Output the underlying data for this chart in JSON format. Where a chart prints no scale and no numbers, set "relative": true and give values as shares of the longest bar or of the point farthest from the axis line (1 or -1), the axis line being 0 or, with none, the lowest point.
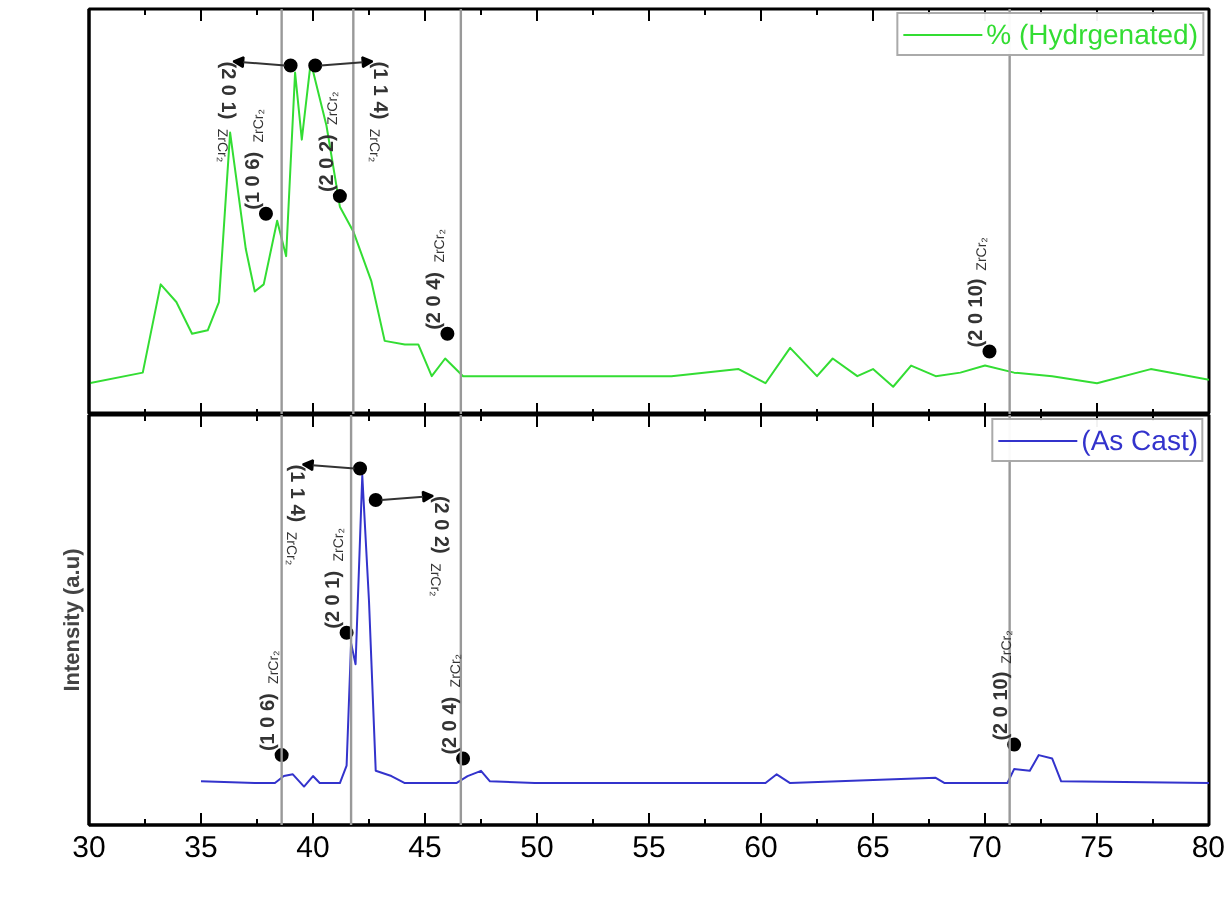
{
  "chart_data": [
    {
      "type": "line",
      "relative": true,
      "legend": "top right",
      "grid": false,
      "tick_labels": false,
      "xlim": [
        30,
        80
      ],
      "xticks": [
        30,
        {
          "value": 32.5,
          "label": null
        },
        35,
        {
          "value": 37.5,
          "label": null
        },
        40,
        {
          "value": 42.5,
          "label": null
        },
        45,
        {
          "value": 47.5,
          "label": null
        },
        50,
        {
          "value": 52.5,
          "label": null
        },
        55,
        {
          "value": 57.5,
          "label": null
        },
        60,
        {
          "value": 62.5,
          "label": null
        },
        65,
        {
          "value": 67.5,
          "label": null
        },
        70,
        {
          "value": 72.5,
          "label": null
        },
        75,
        {
          "value": 77.5,
          "label": null
        },
        80
      ],
      "x": [
        30,
        32.4,
        33.2,
        33.9,
        34.6,
        35.3,
        35.8,
        36.3,
        37.0,
        37.4,
        37.8,
        38.4,
        38.8,
        39.2,
        39.5,
        39.9,
        40.6,
        41.2,
        41.8,
        42.6,
        43.2,
        44.1,
        44.7,
        45.3,
        45.9,
        46.7,
        49.9,
        53.2,
        56.0,
        59.0,
        60.2,
        61.3,
        62.5,
        63.2,
        64.3,
        65.0,
        65.9,
        66.7,
        67.8,
        68.9,
        70.0,
        71.3,
        73.0,
        75.0,
        77.4,
        80.0
      ],
      "series": [
        {
          "name": "% (Hydrgenated)",
          "color": "#33dd33",
          "values": [
            0.09,
            0.12,
            0.37,
            0.32,
            0.23,
            0.24,
            0.32,
            0.8,
            0.47,
            0.35,
            0.37,
            0.55,
            0.45,
            0.97,
            0.78,
            1.0,
            0.82,
            0.59,
            0.52,
            0.38,
            0.21,
            0.2,
            0.2,
            0.11,
            0.16,
            0.11,
            0.11,
            0.11,
            0.11,
            0.13,
            0.09,
            0.19,
            0.11,
            0.16,
            0.11,
            0.13,
            0.08,
            0.14,
            0.11,
            0.12,
            0.14,
            0.12,
            0.11,
            0.09,
            0.13,
            0.1
          ]
        }
      ],
      "ref_lines": [
        {
          "axis": "x",
          "value": 38.6,
          "color": "#999999"
        },
        {
          "axis": "x",
          "value": 41.8,
          "color": "#999999"
        },
        {
          "axis": "x",
          "value": 46.6,
          "color": "#999999"
        },
        {
          "axis": "x",
          "value": 71.1,
          "color": "#999999"
        }
      ],
      "annotations": [
        {
          "text": "(1 0 6)$_{ZrCr₂}$",
          "x": 37.9,
          "y": 0.57
        },
        {
          "text": "(2 0 1)$_{ZrCr₂}$",
          "x": 39.0,
          "y": 0.99
        },
        {
          "text": "(1 1 4)$_{ZrCr₂}$",
          "x": 40.1,
          "y": 0.99
        },
        {
          "text": "(2 0 2)$_{ZrCr₂}$",
          "x": 41.2,
          "y": 0.62
        },
        {
          "text": "(2 0 4)$_{ZrCr₂}$",
          "x": 46.0,
          "y": 0.23
        },
        {
          "text": "(2 0 10)$_{ZrCr₂}$",
          "x": 70.2,
          "y": 0.18
        }
      ]
    },
    {
      "type": "line",
      "relative": true,
      "legend": "top right",
      "grid": false,
      "tick_labels": "x",
      "xlim": [
        30,
        80
      ],
      "ylabel": "Intensity (a.u)",
      "xticks": [
        30,
        {
          "value": 32.5,
          "label": null
        },
        35,
        {
          "value": 37.5,
          "label": null
        },
        40,
        {
          "value": 42.5,
          "label": null
        },
        45,
        {
          "value": 47.5,
          "label": null
        },
        50,
        {
          "value": 52.5,
          "label": null
        },
        55,
        {
          "value": 57.5,
          "label": null
        },
        60,
        {
          "value": 62.5,
          "label": null
        },
        65,
        {
          "value": 67.5,
          "label": null
        },
        70,
        {
          "value": 72.5,
          "label": null
        },
        75,
        {
          "value": 77.5,
          "label": null
        },
        80
      ],
      "x": [
        35,
        37.4,
        38.3,
        38.7,
        39.1,
        39.6,
        40.0,
        40.3,
        41.2,
        41.5,
        41.7,
        41.9,
        42.2,
        42.5,
        42.8,
        43.5,
        44.1,
        46.4,
        46.9,
        47.5,
        47.9,
        49.9,
        53.2,
        60.2,
        60.7,
        61.3,
        67.8,
        68.2,
        71.0,
        71.3,
        72.0,
        72.4,
        73.0,
        73.4,
        80.0
      ],
      "series": [
        {
          "name": "(As Cast)",
          "color": "#3333cc",
          "values": [
            0.125,
            0.12,
            0.12,
            0.14,
            0.145,
            0.11,
            0.14,
            0.12,
            0.12,
            0.17,
            0.52,
            0.46,
            1.0,
            0.64,
            0.155,
            0.14,
            0.12,
            0.12,
            0.14,
            0.155,
            0.125,
            0.12,
            0.12,
            0.12,
            0.145,
            0.12,
            0.135,
            0.12,
            0.12,
            0.16,
            0.155,
            0.2,
            0.19,
            0.125,
            0.12
          ]
        }
      ],
      "ref_lines": [
        {
          "axis": "x",
          "value": 38.6,
          "color": "#999999"
        },
        {
          "axis": "x",
          "value": 41.7,
          "color": "#999999"
        },
        {
          "axis": "x",
          "value": 46.6,
          "color": "#999999"
        },
        {
          "axis": "x",
          "value": 71.1,
          "color": "#999999"
        }
      ],
      "annotations": [
        {
          "text": "(1 0 6)$_{ZrCr₂}$",
          "x": 38.6,
          "y": 0.2
        },
        {
          "text": "(2 0 1)$_{ZrCr₂}$",
          "x": 41.5,
          "y": 0.55
        },
        {
          "text": "(1 1 4)$_{ZrCr₂}$",
          "x": 42.1,
          "y": 1.02
        },
        {
          "text": "(2 0 2)$_{ZrCr₂}$",
          "x": 42.8,
          "y": 0.93
        },
        {
          "text": "(2 0 4)$_{ZrCr₂}$",
          "x": 46.7,
          "y": 0.19
        },
        {
          "text": "(2 0 10)$_{ZrCr₂}$",
          "x": 71.3,
          "y": 0.23
        }
      ]
    }
  ]
}
